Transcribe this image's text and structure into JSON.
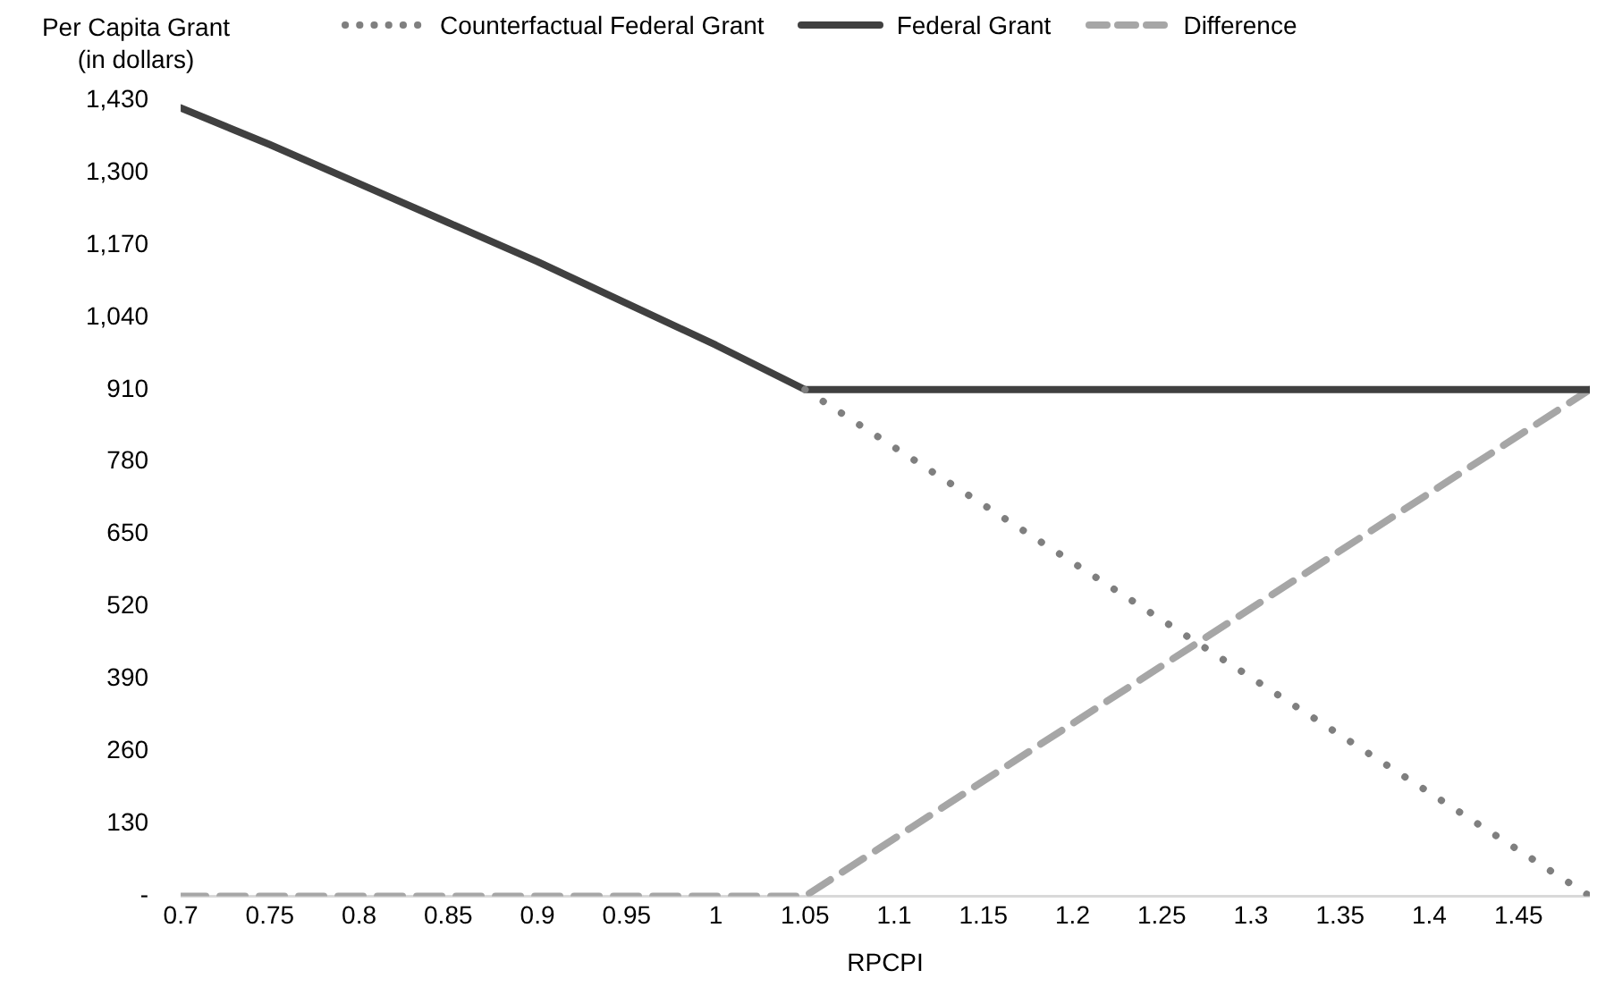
{
  "chart_data": {
    "type": "line",
    "ylabel": "Per Capita Grant\n(in dollars)",
    "xlabel": "RPCPI",
    "xlim": [
      0.7,
      1.49
    ],
    "xticks": [
      0.7,
      0.75,
      0.8,
      0.85,
      0.9,
      0.95,
      1,
      1.05,
      1.1,
      1.15,
      1.2,
      1.25,
      1.3,
      1.35,
      1.4,
      1.45
    ],
    "ylim": [
      0,
      1430
    ],
    "yticks": [
      {
        "value": 0,
        "label": "-"
      },
      130,
      260,
      390,
      520,
      650,
      780,
      910,
      {
        "value": 1040,
        "label": "1,040"
      },
      {
        "value": 1170,
        "label": "1,170"
      },
      {
        "value": 1300,
        "label": "1,300"
      },
      {
        "value": 1430,
        "label": "1,430"
      }
    ],
    "grid": false,
    "legend": "top",
    "marker": "none",
    "series": [
      {
        "name": "Counterfactual Federal Grant",
        "color": "#7f7f7f",
        "line_style": "dotted",
        "x": [
          1.05,
          1.49
        ],
        "values": [
          910,
          0
        ]
      },
      {
        "name": "Federal Grant",
        "color": "#404040",
        "line_style": "solid",
        "x": [
          0.7,
          0.75,
          0.8,
          0.85,
          0.9,
          0.95,
          1,
          1.05,
          1.49
        ],
        "values": [
          1416,
          1350,
          1280,
          1210,
          1140,
          1065,
          990,
          910,
          910
        ]
      },
      {
        "name": "Difference",
        "color": "#a6a6a6",
        "line_style": "dashed",
        "x": [
          0.7,
          1.05,
          1.49
        ],
        "values": [
          0,
          0,
          910
        ]
      }
    ]
  }
}
